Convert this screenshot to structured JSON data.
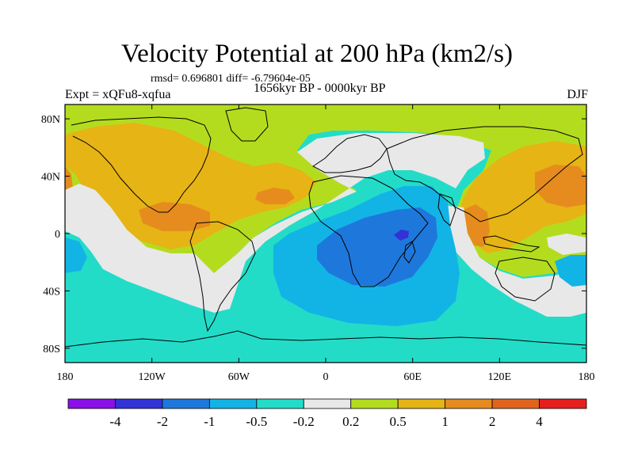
{
  "title": "Velocity Potential at 200 hPa (km2/s)",
  "stats": "rmsd= 0.696801 diff= -6.79604e-05",
  "experiment": "Expt = xQFu8-xqfua",
  "period": "1656kyr BP - 0000kyr BP",
  "season": "DJF",
  "map_axes": {
    "lon_range": [
      -180,
      180
    ],
    "lat_range": [
      -90,
      90
    ],
    "lon_ticks": [
      {
        "value": -180,
        "label": "180"
      },
      {
        "value": -120,
        "label": "120W"
      },
      {
        "value": -60,
        "label": "60W"
      },
      {
        "value": 0,
        "label": "0"
      },
      {
        "value": 60,
        "label": "60E"
      },
      {
        "value": 120,
        "label": "120E"
      },
      {
        "value": 180,
        "label": "180"
      }
    ],
    "lat_ticks": [
      {
        "value": 80,
        "label": "80N"
      },
      {
        "value": 40,
        "label": "40N"
      },
      {
        "value": 0,
        "label": "0"
      },
      {
        "value": -40,
        "label": "40S"
      },
      {
        "value": -80,
        "label": "80S"
      }
    ]
  },
  "colorbar": {
    "colors": [
      "#8a10e8",
      "#3232d6",
      "#1e78dc",
      "#12b4e6",
      "#22dcc8",
      "#e8e8e8",
      "#b4dc1e",
      "#e6b414",
      "#e68c1e",
      "#e0641e",
      "#e61e1e"
    ],
    "labels": [
      "-4",
      "-2",
      "-1",
      "-0.5",
      "-0.2",
      "0.2",
      "0.5",
      "1",
      "2",
      "4"
    ]
  },
  "field_colors": {
    "neg_strong": "#3232d6",
    "neg_1": "#1e78dc",
    "neg_05": "#12b4e6",
    "neg_02": "#22dcc8",
    "neutral": "#e8e8e8",
    "pos_02": "#b4dc1e",
    "pos_05": "#e6b414",
    "pos_1": "#e68c1e"
  }
}
